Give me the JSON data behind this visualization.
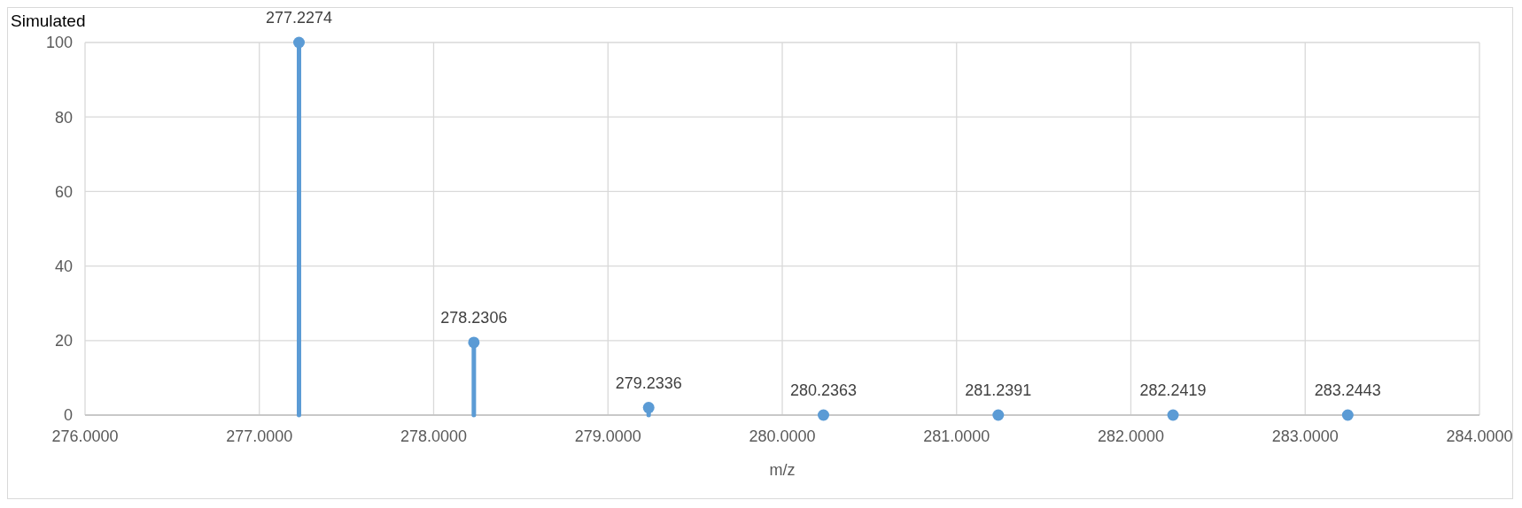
{
  "chart_data": {
    "type": "lollipop",
    "title": "Simulated",
    "xlabel": "m/z",
    "x": [
      277.2274,
      278.2306,
      279.2336,
      280.2363,
      281.2391,
      282.2419,
      283.2443
    ],
    "series": [
      {
        "color": "#5b9bd5",
        "values": [
          100,
          19.5,
          2,
          0,
          0,
          0,
          0
        ]
      }
    ],
    "xlim": [
      276,
      284
    ],
    "xticks": [
      {
        "value": 276,
        "label": "276.0000"
      },
      {
        "value": 277,
        "label": "277.0000"
      },
      {
        "value": 278,
        "label": "278.0000"
      },
      {
        "value": 279,
        "label": "279.0000"
      },
      {
        "value": 280,
        "label": "280.0000"
      },
      {
        "value": 281,
        "label": "281.0000"
      },
      {
        "value": 282,
        "label": "282.0000"
      },
      {
        "value": 283,
        "label": "283.0000"
      },
      {
        "value": 284,
        "label": "284.0000"
      }
    ],
    "ylim": [
      0,
      100
    ],
    "yticks": [
      0,
      20,
      40,
      60,
      80,
      100
    ],
    "grid": true,
    "marker": "circle",
    "annotations": [
      {
        "text": "277.2274",
        "x": 277.2274,
        "y": 100
      },
      {
        "text": "278.2306",
        "x": 278.2306,
        "y": 19.5
      },
      {
        "text": "279.2336",
        "x": 279.2336,
        "y": 2
      },
      {
        "text": "280.2363",
        "x": 280.2363,
        "y": 0
      },
      {
        "text": "281.2391",
        "x": 281.2391,
        "y": 0
      },
      {
        "text": "282.2419",
        "x": 282.2419,
        "y": 0
      },
      {
        "text": "283.2443",
        "x": 283.2443,
        "y": 0
      }
    ]
  }
}
